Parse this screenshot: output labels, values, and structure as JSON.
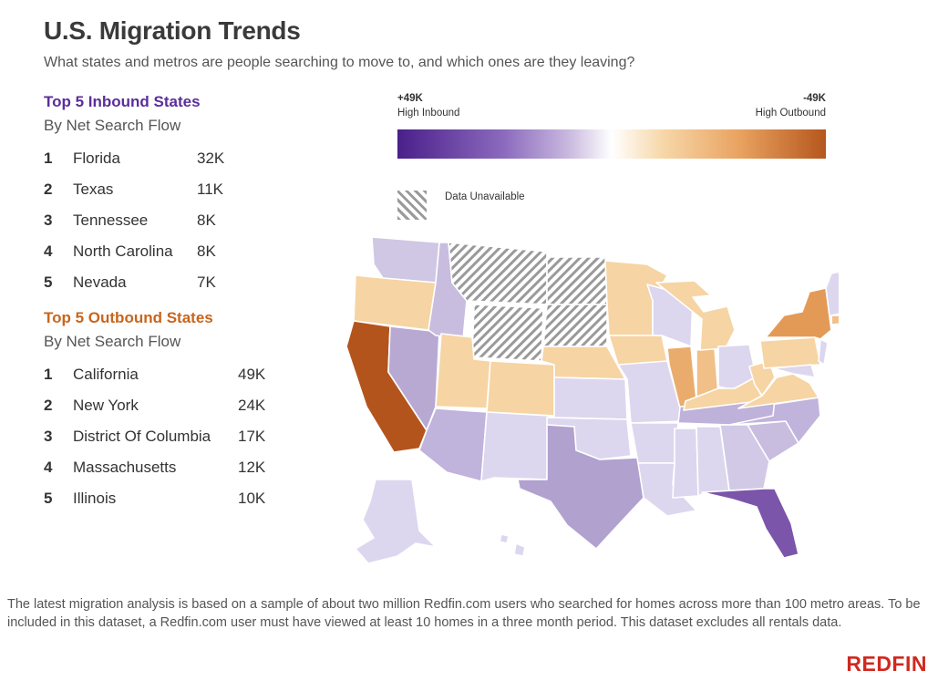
{
  "header": {
    "title": "U.S. Migration Trends",
    "subtitle": "What states and metros are people searching to move to, and which ones are they leaving?"
  },
  "inbound": {
    "heading": "Top 5 Inbound States",
    "subheading": "By Net Search Flow",
    "rows": [
      {
        "rank": "1",
        "state": "Florida",
        "value": "32K"
      },
      {
        "rank": "2",
        "state": "Texas",
        "value": "11K"
      },
      {
        "rank": "3",
        "state": "Tennessee",
        "value": "8K"
      },
      {
        "rank": "4",
        "state": "North Carolina",
        "value": "8K"
      },
      {
        "rank": "5",
        "state": "Nevada",
        "value": "7K"
      }
    ]
  },
  "outbound": {
    "heading": "Top 5 Outbound States",
    "subheading": "By Net Search Flow",
    "rows": [
      {
        "rank": "1",
        "state": "California",
        "value": "49K"
      },
      {
        "rank": "2",
        "state": "New York",
        "value": "24K"
      },
      {
        "rank": "3",
        "state": "District Of Columbia",
        "value": "17K"
      },
      {
        "rank": "4",
        "state": "Massachusetts",
        "value": "12K"
      },
      {
        "rank": "5",
        "state": "Illinois",
        "value": "10K"
      }
    ]
  },
  "legend": {
    "left_value": "+49K",
    "left_label": "High Inbound",
    "right_value": "-49K",
    "right_label": "High Outbound",
    "unavailable_label": "Data Unavailable",
    "colors": {
      "inbound_max": "#4a1f8a",
      "neutral": "#ffffff",
      "outbound_max": "#b5571d",
      "hatch": "#9a9a9a"
    }
  },
  "footnote": "The latest migration analysis is based on a sample of about two million Redfin.com users who searched for homes across more than 100 metro areas. To be included in this dataset, a Redfin.com user must have viewed at least 10 homes in a three month period. This dataset excludes all rentals data.",
  "brand": {
    "logo_text": "REDFIN",
    "color": "#d0281f"
  }
}
